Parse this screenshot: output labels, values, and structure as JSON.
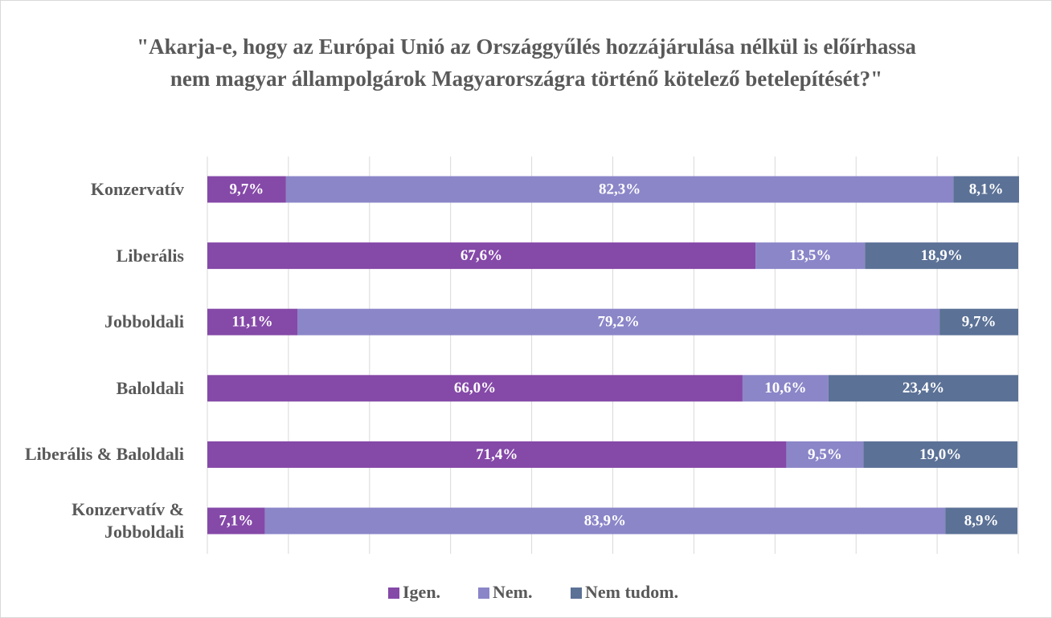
{
  "chart_data": {
    "type": "stacked_barh",
    "title": "\"Akarja-e, hogy az Európai Unió az Országgyűlés hozzájárulása nélkül is előírhassa nem magyar állampolgárok Magyarországra történő kötelező betelepítését?\"",
    "categories": [
      "Konzervatív",
      "Liberális",
      "Jobboldali",
      "Baloldali",
      "Liberális & Baloldali",
      "Konzervatív & Jobboldali"
    ],
    "series": [
      {
        "name": "Igen.",
        "color": "#8549a8",
        "values": [
          9.7,
          67.6,
          11.1,
          66.0,
          71.4,
          7.1
        ],
        "value_labels": [
          "9,7%",
          "67,6%",
          "11,1%",
          "66,0%",
          "71,4%",
          "7,1%"
        ]
      },
      {
        "name": "Nem.",
        "color": "#8b86c8",
        "values": [
          82.3,
          13.5,
          79.2,
          10.6,
          9.5,
          83.9
        ],
        "value_labels": [
          "82,3%",
          "13,5%",
          "79,2%",
          "10,6%",
          "9,5%",
          "83,9%"
        ]
      },
      {
        "name": "Nem tudom.",
        "color": "#5b7196",
        "values": [
          8.1,
          18.9,
          9.7,
          23.4,
          19.0,
          8.9
        ],
        "value_labels": [
          "8,1%",
          "18,9%",
          "9,7%",
          "23,4%",
          "19,0%",
          "8,9%"
        ]
      }
    ],
    "xlim": [
      0,
      100
    ],
    "xticks": [
      0,
      10,
      20,
      30,
      40,
      50,
      60,
      70,
      80,
      90,
      100
    ],
    "grid": true,
    "legend": "bottom"
  }
}
